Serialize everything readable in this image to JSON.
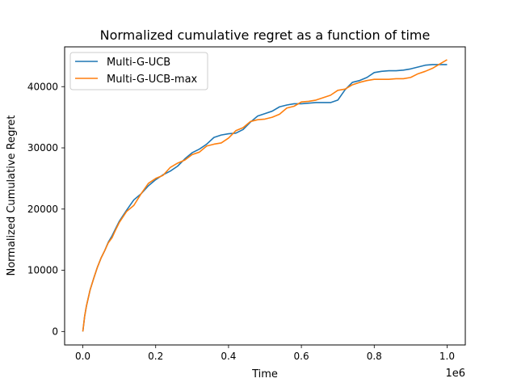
{
  "chart_data": {
    "type": "line",
    "title": "Normalized cumulative regret as a function of time",
    "xlabel": "Time",
    "ylabel": "Normalized Cumulative Regret",
    "x_offset_label": "1e6",
    "xlim": [
      -0.05,
      1.05
    ],
    "ylim": [
      -2200,
      46500
    ],
    "x_ticks": [
      0.0,
      0.2,
      0.4,
      0.6,
      0.8,
      1.0
    ],
    "x_tick_labels": [
      "0.0",
      "0.2",
      "0.4",
      "0.6",
      "0.8",
      "1.0"
    ],
    "y_ticks": [
      0,
      10000,
      20000,
      30000,
      40000
    ],
    "y_tick_labels": [
      "0",
      "10000",
      "20000",
      "30000",
      "40000"
    ],
    "grid": false,
    "legend_position": "upper-left",
    "series": [
      {
        "name": "Multi-G-UCB",
        "color": "#1f77b4",
        "x": [
          0,
          0.005,
          0.01,
          0.02,
          0.03,
          0.04,
          0.05,
          0.06,
          0.07,
          0.08,
          0.09,
          0.1,
          0.12,
          0.14,
          0.16,
          0.18,
          0.2,
          0.22,
          0.24,
          0.26,
          0.28,
          0.3,
          0.32,
          0.34,
          0.36,
          0.38,
          0.4,
          0.42,
          0.44,
          0.46,
          0.48,
          0.5,
          0.52,
          0.54,
          0.56,
          0.58,
          0.6,
          0.62,
          0.64,
          0.66,
          0.68,
          0.7,
          0.72,
          0.74,
          0.76,
          0.78,
          0.8,
          0.82,
          0.84,
          0.86,
          0.88,
          0.9,
          0.92,
          0.94,
          0.96,
          0.98,
          1.0
        ],
        "y": [
          0,
          2500,
          4200,
          6800,
          8700,
          10500,
          12000,
          13200,
          14600,
          15600,
          16800,
          18000,
          19800,
          21500,
          22500,
          23800,
          24800,
          25600,
          26200,
          27000,
          28200,
          29200,
          29800,
          30600,
          31700,
          32100,
          32300,
          32400,
          33000,
          34200,
          35200,
          35600,
          36000,
          36700,
          37000,
          37200,
          37200,
          37300,
          37400,
          37400,
          37400,
          37800,
          39500,
          40700,
          41000,
          41500,
          42300,
          42500,
          42600,
          42600,
          42700,
          42900,
          43200,
          43500,
          43600,
          43600,
          43600
        ]
      },
      {
        "name": "Multi-G-UCB-max",
        "color": "#ff7f0e",
        "x": [
          0,
          0.005,
          0.01,
          0.02,
          0.03,
          0.04,
          0.05,
          0.06,
          0.07,
          0.08,
          0.09,
          0.1,
          0.12,
          0.14,
          0.16,
          0.18,
          0.2,
          0.22,
          0.24,
          0.26,
          0.28,
          0.3,
          0.32,
          0.34,
          0.36,
          0.38,
          0.4,
          0.42,
          0.44,
          0.46,
          0.48,
          0.5,
          0.52,
          0.54,
          0.56,
          0.58,
          0.6,
          0.62,
          0.64,
          0.66,
          0.68,
          0.7,
          0.72,
          0.74,
          0.76,
          0.78,
          0.8,
          0.82,
          0.84,
          0.86,
          0.88,
          0.9,
          0.92,
          0.94,
          0.96,
          0.98,
          1.0
        ],
        "y": [
          0,
          2500,
          4200,
          6800,
          8700,
          10500,
          12000,
          13200,
          14500,
          15300,
          16600,
          17800,
          19600,
          20600,
          22500,
          24200,
          25000,
          25500,
          26800,
          27500,
          28000,
          28900,
          29300,
          30300,
          30600,
          30800,
          31600,
          32800,
          33300,
          34300,
          34600,
          34700,
          35000,
          35500,
          36500,
          36800,
          37500,
          37600,
          37800,
          38200,
          38600,
          39400,
          39600,
          40300,
          40700,
          41000,
          41200,
          41200,
          41200,
          41300,
          41300,
          41500,
          42100,
          42500,
          43000,
          43700,
          44400
        ]
      }
    ]
  }
}
